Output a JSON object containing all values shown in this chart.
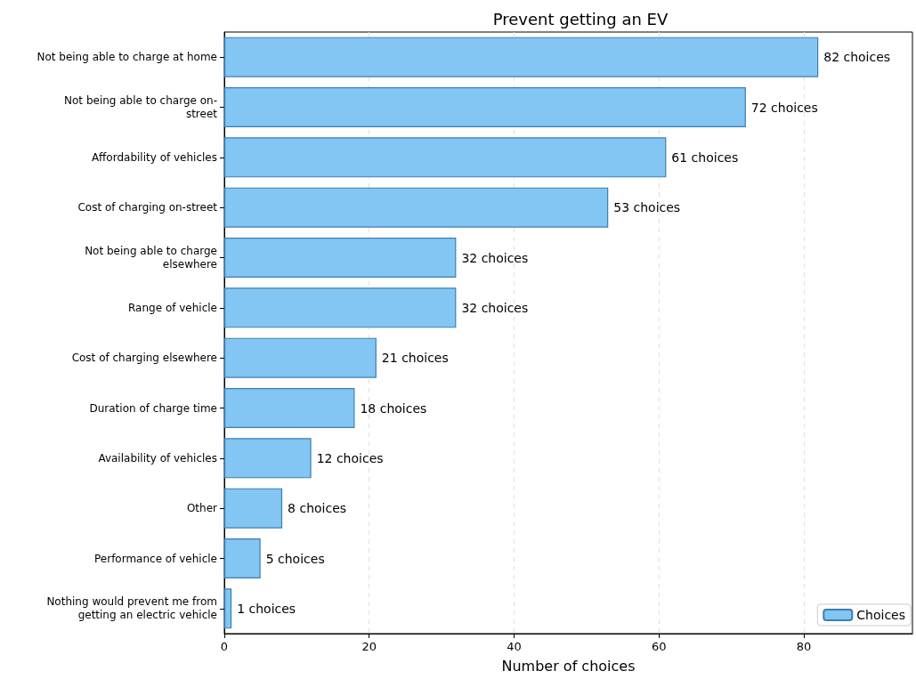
{
  "chart_data": {
    "type": "bar",
    "orientation": "horizontal",
    "title": "Prevent getting an EV",
    "xlabel": "Number of choices",
    "categories": [
      "Not being able to charge at home",
      "Not being able to charge on-\nstreet",
      "Affordability of vehicles",
      "Cost of charging on-street",
      "Not being able to charge\nelsewhere",
      "Range of vehicle",
      "Cost of charging elsewhere",
      "Duration of charge time",
      "Availability of vehicles",
      "Other",
      "Performance of vehicle",
      "Nothing would prevent me from\ngetting an electric vehicle"
    ],
    "series": [
      {
        "name": "Choices",
        "color": "#83c6f4",
        "values": [
          82,
          72,
          61,
          53,
          32,
          32,
          21,
          18,
          12,
          8,
          5,
          1
        ],
        "value_labels": [
          "82 choices",
          "72 choices",
          "61 choices",
          "53 choices",
          "32 choices",
          "32 choices",
          "21 choices",
          "18 choices",
          "12 choices",
          "8 choices",
          "5 choices",
          "1 choices"
        ]
      }
    ],
    "xlim": [
      0,
      95
    ],
    "xticks": [
      0,
      20,
      40,
      60,
      80
    ],
    "grid": "x",
    "legend": "bottom right"
  }
}
